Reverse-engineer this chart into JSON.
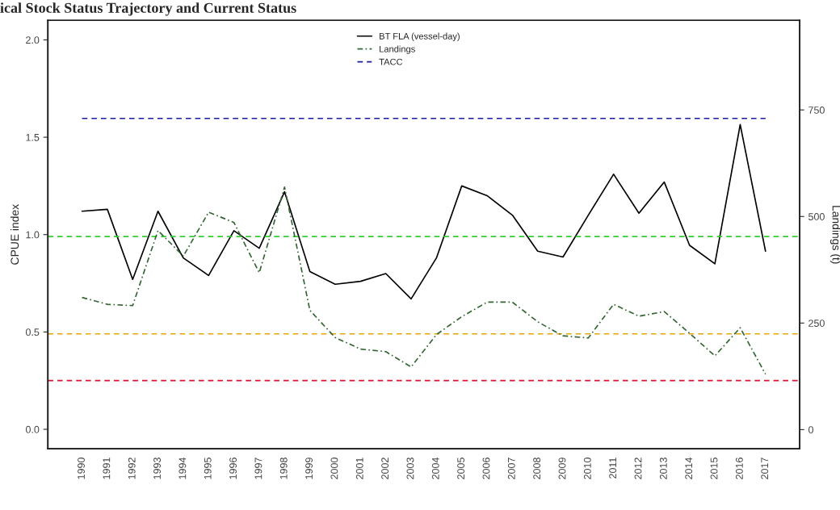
{
  "chart_data": {
    "type": "line",
    "title": "ical Stock Status Trajectory and Current Status",
    "ylabel": "CPUE index",
    "y2label": "Landings (t)",
    "categories": [
      "1990",
      "1991",
      "1992",
      "1993",
      "1994",
      "1995",
      "1996",
      "1997",
      "1998",
      "1999",
      "2000",
      "2001",
      "2002",
      "2003",
      "2004",
      "2005",
      "2006",
      "2007",
      "2008",
      "2009",
      "2010",
      "2011",
      "2012",
      "2013",
      "2014",
      "2015",
      "2016",
      "2017"
    ],
    "series": [
      {
        "name": "BT FLA (vessel-day)",
        "color": "#000000",
        "line_style": "solid",
        "values": [
          1.12,
          1.13,
          0.77,
          1.12,
          0.88,
          0.79,
          1.02,
          0.93,
          1.22,
          0.81,
          0.745,
          0.76,
          0.8,
          0.67,
          0.88,
          1.25,
          1.2,
          1.1,
          0.915,
          0.885,
          1.1,
          1.31,
          1.11,
          1.27,
          0.945,
          0.85,
          1.565,
          0.915
        ]
      },
      {
        "name": "Landings",
        "color": "#336633",
        "line_style": "dashdot",
        "axis": "y2",
        "values": [
          310,
          294,
          291,
          467,
          407,
          510,
          486,
          368,
          569,
          280,
          216,
          189,
          183,
          147,
          223,
          265,
          299,
          299,
          253,
          220,
          215,
          294,
          266,
          277,
          226,
          173,
          239,
          130
        ]
      },
      {
        "name": "TACC",
        "color": "#1a1aa0",
        "line_style": "dashed",
        "axis": "y2",
        "values": [
          730,
          730,
          730,
          730,
          730,
          730,
          730,
          730,
          730,
          730,
          730,
          730,
          730,
          730,
          730,
          730,
          730,
          730,
          730,
          730,
          730,
          730,
          730,
          730,
          730,
          730,
          730,
          730
        ]
      }
    ],
    "ref_lines": [
      {
        "axis": "y",
        "value": 0.99,
        "color": "#33cc33",
        "line_style": "dashed"
      },
      {
        "axis": "y",
        "value": 0.49,
        "color": "#e6a800",
        "line_style": "dashed"
      },
      {
        "axis": "y",
        "value": 0.25,
        "color": "#dd1133",
        "line_style": "dashed"
      }
    ],
    "ylim": [
      -0.1,
      2.1
    ],
    "yticks": [
      {
        "value": 0,
        "label": "0.0"
      },
      0.5,
      {
        "value": 1,
        "label": "1.0"
      },
      1.5,
      {
        "value": 2,
        "label": "2.0"
      }
    ],
    "y2lim": [
      -45,
      960
    ],
    "y2ticks": [
      0,
      250,
      500,
      750
    ],
    "grid": false,
    "legend": "top",
    "marker": "none"
  }
}
